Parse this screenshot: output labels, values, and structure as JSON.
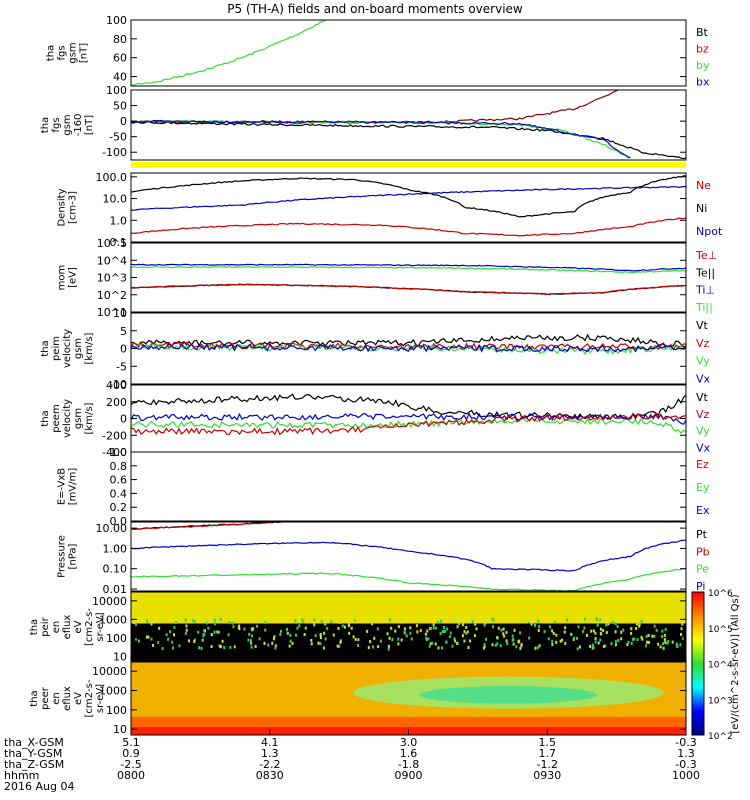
{
  "title": "P5 (TH-A) fields and on-board moments overview",
  "date_label": "2016 Aug 04",
  "ephemeris": {
    "labels": [
      "tha_X-GSM",
      "tha_Y-GSM",
      "tha_Z-GSM",
      "hhmm"
    ],
    "columns": [
      [
        "5.1",
        "0.9",
        "-2.5",
        "0800"
      ],
      [
        "4.1",
        "1.3",
        "-2.2",
        "0830"
      ],
      [
        "3.0",
        "1.6",
        "-1.8",
        "0900"
      ],
      [
        "1.5",
        "1.7",
        "-1.2",
        "0930"
      ],
      [
        "-0.3",
        "1.3",
        "-0.3",
        "1000"
      ]
    ]
  },
  "colors": {
    "black": "#000000",
    "red": "#cc0000",
    "green": "#33dd33",
    "blue": "#0000cc",
    "darkred": "#8b0000",
    "yellow": "#ffff00"
  },
  "chart_data": [
    {
      "type": "line",
      "ylabel": [
        "tha",
        "fgs",
        "gsm",
        "[nT]"
      ],
      "ylim": [
        30,
        100
      ],
      "yticks": [
        "40",
        "60",
        "80",
        "100"
      ],
      "legend": [
        {
          "name": "Bt",
          "color": "#000000"
        },
        {
          "name": "bz",
          "color": "#cc0000"
        },
        {
          "name": "by",
          "color": "#33dd33"
        },
        {
          "name": "bx",
          "color": "#0000cc"
        }
      ],
      "series": [
        {
          "name": "by",
          "color": "#33dd33",
          "x": [
            0,
            0.05,
            0.1,
            0.15,
            0.2,
            0.25,
            0.3,
            0.34,
            0.36
          ],
          "y": [
            31,
            35,
            42,
            50,
            60,
            72,
            85,
            97,
            102
          ]
        }
      ]
    },
    {
      "type": "line",
      "ylabel": [
        "tha",
        "fgs",
        "gsm",
        "-160",
        "[nT]"
      ],
      "ylim": [
        -125,
        100
      ],
      "yticks": [
        "-100",
        "-50",
        "0",
        "50",
        "100"
      ],
      "flag_bar": true,
      "series": [
        {
          "name": "bz",
          "color": "#8b0000",
          "x": [
            0,
            0.3,
            0.55,
            0.7,
            0.8,
            0.86,
            0.88
          ],
          "y": [
            -2,
            -4,
            -3,
            8,
            40,
            85,
            105
          ]
        },
        {
          "name": "Bt",
          "color": "#000000",
          "x": [
            0,
            0.2,
            0.4,
            0.55,
            0.65,
            0.75,
            0.85,
            0.92,
            1.0
          ],
          "y": [
            -3,
            -10,
            -15,
            -18,
            -20,
            -30,
            -55,
            -100,
            -120
          ]
        },
        {
          "name": "by",
          "color": "#33dd33",
          "x": [
            0,
            0.3,
            0.55,
            0.7,
            0.78,
            0.85,
            0.9
          ],
          "y": [
            0,
            -2,
            -5,
            -12,
            -30,
            -75,
            -120
          ]
        },
        {
          "name": "bx",
          "color": "#0000cc",
          "x": [
            0,
            0.4,
            0.7,
            0.85,
            0.9
          ],
          "y": [
            -1,
            -3,
            -8,
            -60,
            -120
          ]
        }
      ]
    },
    {
      "type": "line",
      "scale": "log",
      "ylabel": [
        "Density",
        "[cm-3]"
      ],
      "ylim": [
        0.1,
        150
      ],
      "yticks": [
        "0.1",
        "1.0",
        "10.0",
        "100.0"
      ],
      "legend": [
        {
          "name": "Ne",
          "color": "#cc0000"
        },
        {
          "name": "Ni",
          "color": "#000000"
        },
        {
          "name": "Npot",
          "color": "#0000cc"
        }
      ],
      "series": [
        {
          "name": "Ni",
          "color": "#000000",
          "x": [
            0,
            0.1,
            0.2,
            0.3,
            0.4,
            0.5,
            0.6,
            0.7,
            0.8,
            0.9,
            1.0
          ],
          "y": [
            20,
            40,
            65,
            85,
            75,
            25,
            4,
            1.4,
            2.5,
            20,
            110
          ]
        },
        {
          "name": "Npot",
          "color": "#0000cc",
          "x": [
            0,
            0.2,
            0.4,
            0.6,
            0.8,
            1.0
          ],
          "y": [
            3,
            5,
            12,
            20,
            28,
            35
          ]
        },
        {
          "name": "Ne",
          "color": "#cc0000",
          "x": [
            0,
            0.15,
            0.3,
            0.45,
            0.6,
            0.7,
            0.8,
            0.9,
            1.0
          ],
          "y": [
            0.25,
            0.5,
            0.7,
            0.6,
            0.25,
            0.2,
            0.25,
            0.5,
            1.3
          ]
        }
      ]
    },
    {
      "type": "line",
      "scale": "log",
      "ylabel": [
        "mom",
        "[eV]"
      ],
      "ylim": [
        10,
        100000
      ],
      "yticks": [
        "10^1",
        "10^2",
        "10^3",
        "10^4",
        "10^5"
      ],
      "legend": [
        {
          "name": "Te⊥",
          "color": "#cc0000"
        },
        {
          "name": "Te||",
          "color": "#000000"
        },
        {
          "name": "Ti⊥",
          "color": "#0000cc"
        },
        {
          "name": "Ti||",
          "color": "#33dd33"
        }
      ],
      "series": [
        {
          "name": "Ti||",
          "color": "#33dd33",
          "x": [
            0,
            0.3,
            0.6,
            0.8,
            0.9,
            1.0
          ],
          "y": [
            4000,
            4000,
            3500,
            2500,
            2000,
            2500
          ]
        },
        {
          "name": "Ti⊥",
          "color": "#0000cc",
          "x": [
            0,
            0.3,
            0.6,
            0.8,
            0.9,
            1.0
          ],
          "y": [
            5500,
            5500,
            5000,
            3500,
            2500,
            3500
          ]
        },
        {
          "name": "Te||",
          "color": "#000000",
          "x": [
            0,
            0.2,
            0.4,
            0.6,
            0.75,
            0.85,
            1.0
          ],
          "y": [
            250,
            400,
            300,
            150,
            110,
            130,
            350
          ]
        },
        {
          "name": "Te⊥",
          "color": "#cc0000",
          "x": [
            0,
            0.2,
            0.4,
            0.6,
            0.75,
            0.85,
            1.0
          ],
          "y": [
            250,
            400,
            300,
            150,
            110,
            130,
            350
          ]
        }
      ]
    },
    {
      "type": "line",
      "ylabel": [
        "tha",
        "peim",
        "velocity",
        "gsm",
        "[km/s]"
      ],
      "ylim": [
        -10,
        10
      ],
      "yticks": [
        "-10",
        "-5",
        "0",
        "5",
        "10"
      ],
      "legend": [
        {
          "name": "Vt",
          "color": "#000000"
        },
        {
          "name": "Vz",
          "color": "#cc0000"
        },
        {
          "name": "Vy",
          "color": "#33dd33"
        },
        {
          "name": "Vx",
          "color": "#0000cc"
        }
      ],
      "series": [
        {
          "name": "Vt",
          "color": "#000000",
          "x": [
            0,
            0.5,
            0.7,
            0.85,
            1.0
          ],
          "y": [
            1.5,
            1.5,
            3,
            3,
            1
          ]
        },
        {
          "name": "Vz",
          "color": "#cc0000",
          "x": [
            0,
            0.5,
            1.0
          ],
          "y": [
            1,
            0.5,
            0.5
          ]
        },
        {
          "name": "Vy",
          "color": "#33dd33",
          "x": [
            0,
            0.6,
            0.85,
            1.0
          ],
          "y": [
            0.5,
            0,
            -1,
            0.5
          ]
        },
        {
          "name": "Vx",
          "color": "#0000cc",
          "x": [
            0,
            0.5,
            1.0
          ],
          "y": [
            0.5,
            0,
            0
          ]
        }
      ]
    },
    {
      "type": "line",
      "ylabel": [
        "tha",
        "peem",
        "velocity",
        "gsm",
        "[km/s]"
      ],
      "ylim": [
        -400,
        400
      ],
      "yticks": [
        "-400",
        "-200",
        "0",
        "200",
        "400"
      ],
      "legend": [
        {
          "name": "Vt",
          "color": "#000000"
        },
        {
          "name": "Vz",
          "color": "#cc0000"
        },
        {
          "name": "Vy",
          "color": "#33dd33"
        },
        {
          "name": "Vx",
          "color": "#0000cc"
        }
      ],
      "series": [
        {
          "name": "Vt",
          "color": "#000000",
          "x": [
            0,
            0.15,
            0.3,
            0.45,
            0.55,
            0.7,
            0.9,
            0.95,
            1.0
          ],
          "y": [
            190,
            220,
            260,
            220,
            80,
            40,
            20,
            60,
            250
          ]
        },
        {
          "name": "Vy",
          "color": "#33dd33",
          "x": [
            0,
            0.3,
            0.5,
            0.7,
            0.95,
            1.0
          ],
          "y": [
            -70,
            -80,
            -70,
            -30,
            -40,
            -180
          ]
        },
        {
          "name": "Vx",
          "color": "#0000cc",
          "x": [
            0,
            0.3,
            0.5,
            0.7,
            0.95,
            1.0
          ],
          "y": [
            10,
            20,
            20,
            20,
            30,
            -50
          ]
        },
        {
          "name": "Vz",
          "color": "#cc0000",
          "x": [
            0,
            0.2,
            0.4,
            0.55,
            0.7,
            0.9,
            1.0
          ],
          "y": [
            -150,
            -160,
            -140,
            -60,
            0,
            20,
            30
          ]
        }
      ]
    },
    {
      "type": "line",
      "ylabel": [
        "E=-VxB",
        "[mV/m]"
      ],
      "ylim": [
        0,
        1.0
      ],
      "yticks": [
        "0.0",
        "0.2",
        "0.4",
        "0.6",
        "0.8",
        "1.0"
      ],
      "legend": [
        {
          "name": "Ez",
          "color": "#cc0000"
        },
        {
          "name": "Ey",
          "color": "#33dd33"
        },
        {
          "name": "Ex",
          "color": "#0000cc"
        }
      ],
      "series": []
    },
    {
      "type": "line",
      "scale": "log",
      "ylabel": [
        "Pressure",
        "[nPa]"
      ],
      "ylim": [
        0.008,
        20
      ],
      "yticks": [
        "0.01",
        "0.10",
        "1.00",
        "10.00"
      ],
      "legend": [
        {
          "name": "Pt",
          "color": "#000000"
        },
        {
          "name": "Pb",
          "color": "#cc0000"
        },
        {
          "name": "Pe",
          "color": "#33dd33"
        },
        {
          "name": "Pi",
          "color": "#0000cc"
        }
      ],
      "series": [
        {
          "name": "Pt",
          "color": "#000000",
          "x": [
            0,
            0.1,
            0.2,
            0.28
          ],
          "y": [
            9,
            12,
            16,
            21
          ]
        },
        {
          "name": "Pb",
          "color": "#cc0000",
          "x": [
            0,
            0.1,
            0.2,
            0.28
          ],
          "y": [
            8.8,
            11.5,
            15.5,
            20.5
          ]
        },
        {
          "name": "Pi",
          "color": "#0000cc",
          "x": [
            0,
            0.2,
            0.35,
            0.5,
            0.65,
            0.8,
            0.9,
            1.0
          ],
          "y": [
            1,
            1.6,
            2,
            0.7,
            0.1,
            0.08,
            0.4,
            2.5
          ]
        },
        {
          "name": "Pe",
          "color": "#33dd33",
          "x": [
            0,
            0.2,
            0.35,
            0.5,
            0.65,
            0.8,
            0.9,
            1.0
          ],
          "y": [
            0.04,
            0.05,
            0.06,
            0.02,
            0.01,
            0.008,
            0.03,
            0.1
          ]
        }
      ]
    },
    {
      "type": "heatmap",
      "scale": "log",
      "ylabel": [
        "tha",
        "peir",
        "en",
        "eflux",
        "eV",
        "[cm2-s-",
        "sr-eV]"
      ],
      "ylim": [
        5,
        30000
      ],
      "yticks": [
        "10",
        "100",
        "1000",
        "10000"
      ]
    },
    {
      "type": "heatmap",
      "scale": "log",
      "ylabel": [
        "tha",
        "peer",
        "en",
        "eflux",
        "eV",
        "[cm2-s-",
        "sr-eV]"
      ],
      "ylim": [
        5,
        30000
      ],
      "yticks": [
        "10",
        "100",
        "1000",
        "10000"
      ]
    }
  ],
  "colorbar": {
    "label": "[eV/(cm^2-s-sr-eV)] (All Qs)",
    "ticks": [
      "10^2",
      "10^3",
      "10^4",
      "10^5",
      "10^6"
    ],
    "ticks_lower": [
      "10^2",
      "10^3",
      "10^4",
      "10^5",
      "10^6"
    ]
  }
}
